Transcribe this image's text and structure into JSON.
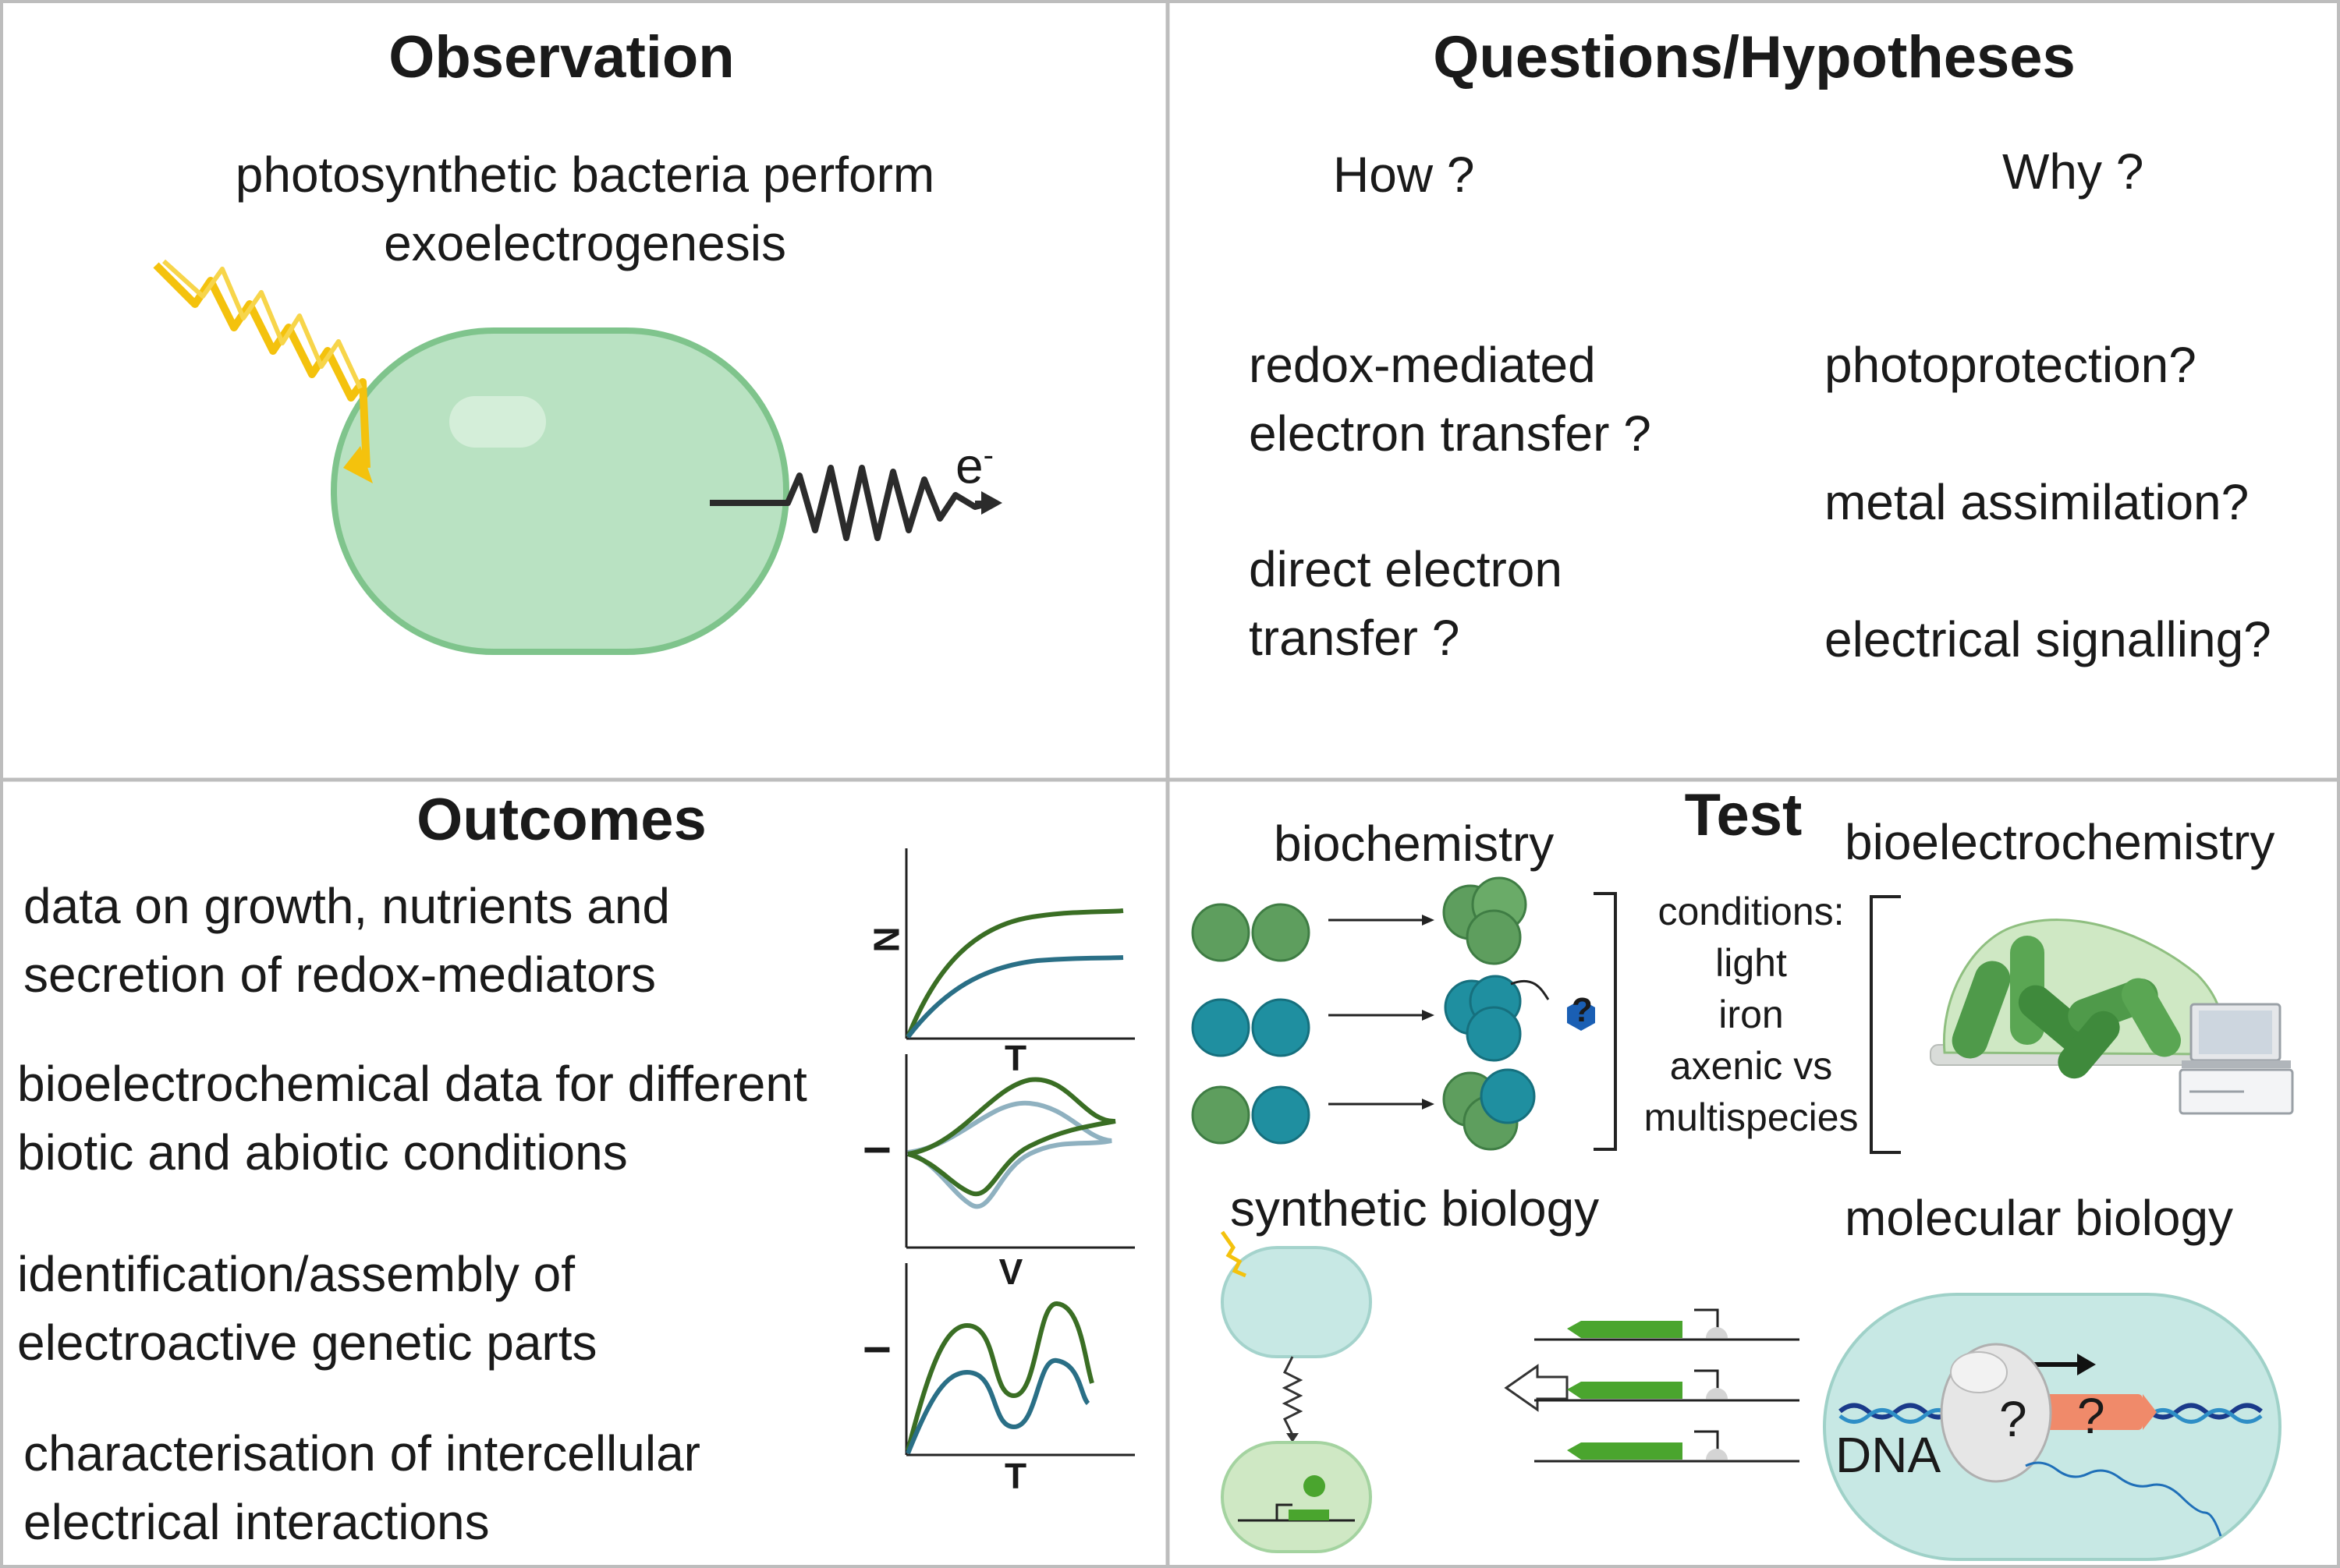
{
  "observation": {
    "title": "Observation",
    "text_line1": "photosynthetic bacteria perform",
    "text_line2": "exoelectrogenesis",
    "electron_label": "e",
    "electron_sup": "-"
  },
  "questions": {
    "title": "Questions/Hypotheses",
    "how": {
      "heading": "How ?",
      "items": [
        {
          "line1": "redox-mediated",
          "line2": "electron transfer ?"
        },
        {
          "line1": "direct electron",
          "line2": "transfer ?"
        }
      ]
    },
    "why": {
      "heading": "Why ?",
      "items": [
        "photoprotection?",
        "metal assimilation?",
        "electrical signalling?"
      ]
    }
  },
  "outcomes": {
    "title": "Outcomes",
    "items": [
      {
        "line1": "data on growth, nutrients and",
        "line2": "secretion of redox-mediators"
      },
      {
        "line1": "bioelectrochemical data for different",
        "line2": "biotic and abiotic conditions"
      },
      {
        "line1": "identification/assembly of",
        "line2": "electroactive genetic parts"
      },
      {
        "line1": "characterisation of intercellular",
        "line2": "electrical interactions"
      }
    ],
    "plot_labels": {
      "plot1_y": "N",
      "plot1_x": "T",
      "plot2_y": "I",
      "plot2_x": "V",
      "plot3_y": "I",
      "plot3_x": "T"
    }
  },
  "test": {
    "title": "Test",
    "biochemistry": "biochemistry",
    "bioelectrochemistry": "bioelectrochemistry",
    "conditions": [
      "conditions:",
      "light",
      "iron",
      "axenic vs",
      "multispecies"
    ],
    "synthetic_biology": "synthetic biology",
    "molecular_biology": "molecular biology",
    "dna_label": "DNA",
    "question_mark": "?"
  },
  "colors": {
    "border": "#bdbdbd",
    "cell_green": "#b9e2c2",
    "cell_green_edge": "#7fc48c",
    "sun_yellow": "#f4c20d",
    "dark_green": "#3a6e24",
    "teal": "#2a6f86",
    "light_blue": "#8fb1c0",
    "gene_green": "#4aa52e",
    "orange": "#f08a6a"
  }
}
